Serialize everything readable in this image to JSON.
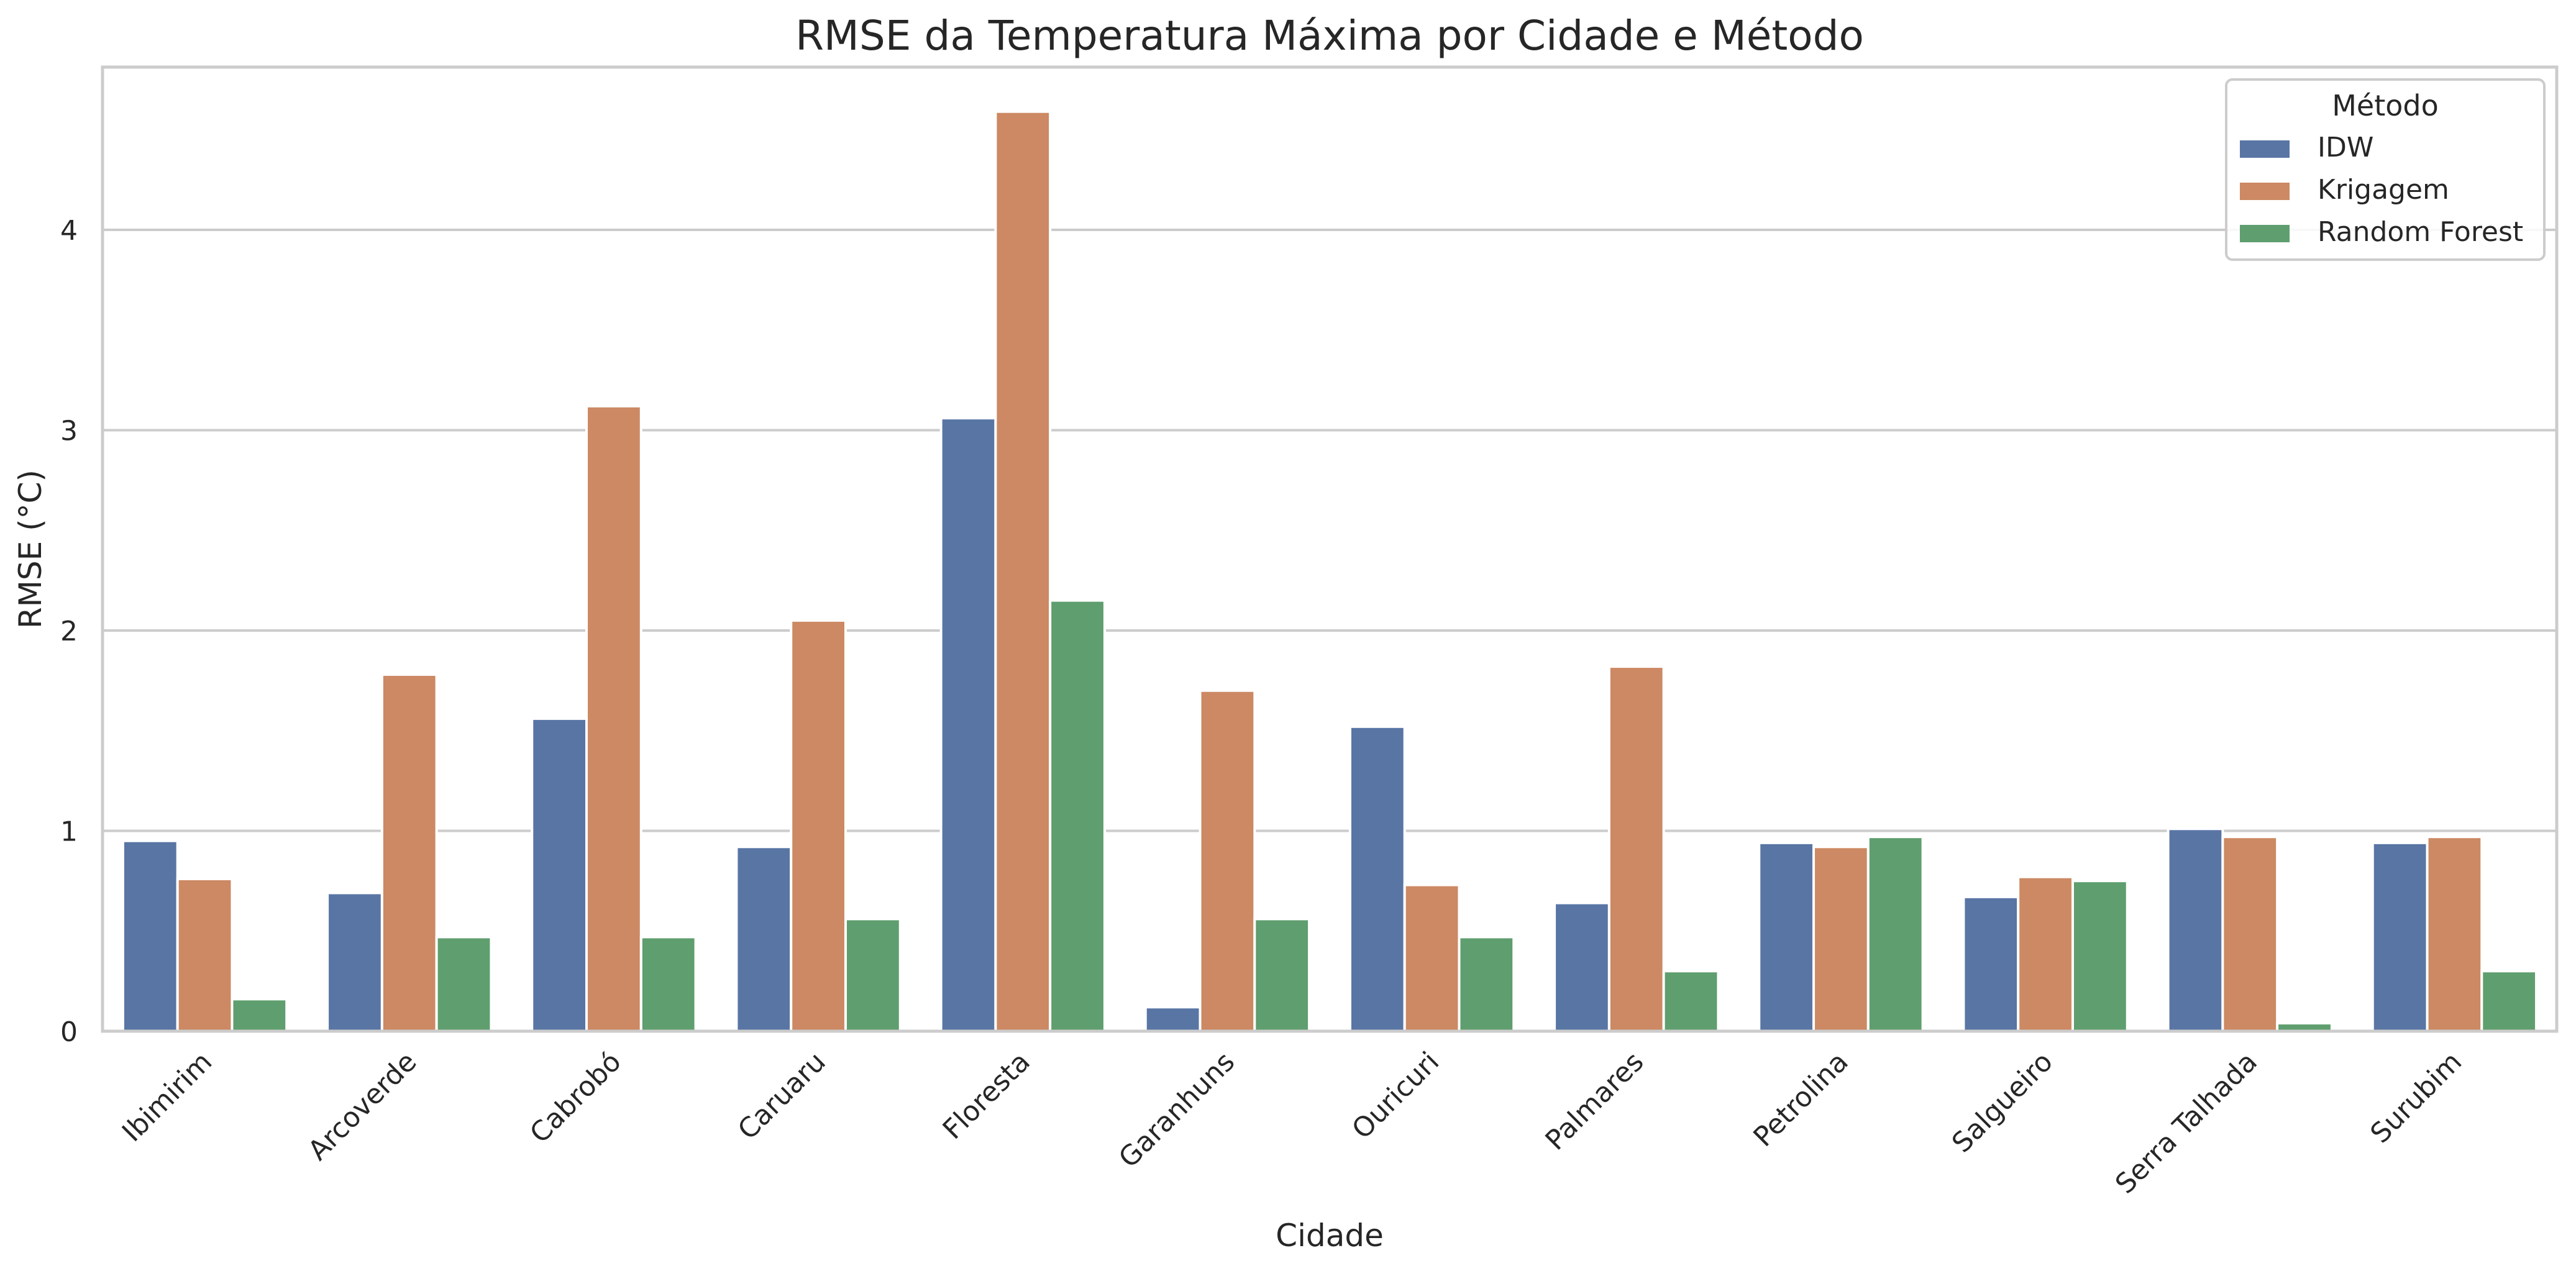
{
  "chart_data": {
    "type": "bar",
    "title": "RMSE da Temperatura Máxima por Cidade e Método",
    "xlabel": "Cidade",
    "ylabel": "RMSE (°C)",
    "ylim": [
      0,
      4.82
    ],
    "yticks": [
      0,
      1,
      2,
      3,
      4
    ],
    "grid": "horizontal",
    "legend": {
      "title": "Método",
      "placement": "top-right"
    },
    "categories": [
      "Ibimirim",
      "Arcoverde",
      "Cabrobó",
      "Caruaru",
      "Floresta",
      "Garanhuns",
      "Ouricuri",
      "Palmares",
      "Petrolina",
      "Salgueiro",
      "Serra Talhada",
      "Surubim"
    ],
    "series": [
      {
        "name": "IDW",
        "color": "#5875a4",
        "values": [
          0.95,
          0.69,
          1.56,
          0.92,
          3.06,
          0.12,
          1.52,
          0.64,
          0.94,
          0.67,
          1.01,
          0.94
        ]
      },
      {
        "name": "Krigagem",
        "color": "#cc8963",
        "values": [
          0.76,
          1.78,
          3.12,
          2.05,
          4.59,
          1.7,
          0.73,
          1.82,
          0.92,
          0.77,
          0.97,
          0.97
        ]
      },
      {
        "name": "Random Forest",
        "color": "#5f9e6e",
        "values": [
          0.16,
          0.47,
          0.47,
          0.56,
          2.15,
          0.56,
          0.47,
          0.3,
          0.97,
          0.75,
          0.04,
          0.3
        ]
      }
    ]
  }
}
